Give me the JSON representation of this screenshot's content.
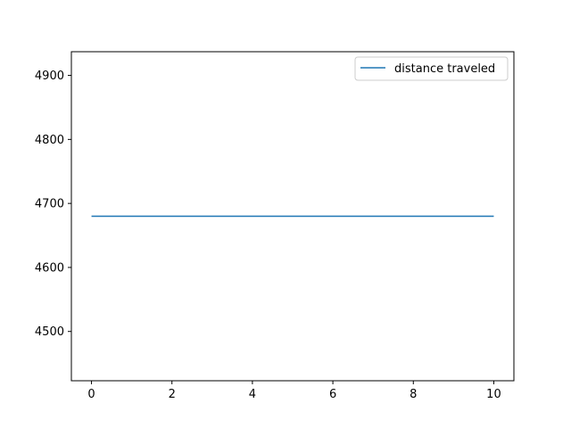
{
  "chart_data": {
    "type": "line",
    "title": "",
    "xlabel": "",
    "ylabel": "",
    "xlim": [
      -0.5,
      10.5
    ],
    "ylim": [
      4423,
      4937
    ],
    "x_ticks": [
      0,
      2,
      4,
      6,
      8,
      10
    ],
    "y_ticks": [
      4500,
      4600,
      4700,
      4800,
      4900
    ],
    "grid": false,
    "legend_position": "top-right",
    "series": [
      {
        "name": "distance traveled",
        "color": "#1f77b4",
        "x": [
          0,
          10
        ],
        "y": [
          4680,
          4680
        ]
      }
    ]
  }
}
